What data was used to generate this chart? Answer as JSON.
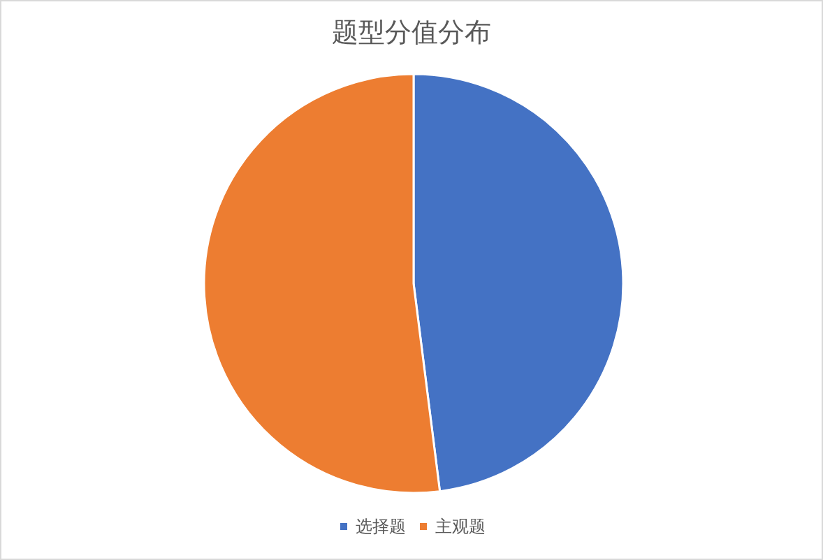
{
  "chart_data": {
    "type": "pie",
    "title": "题型分值分布",
    "categories": [
      "选择题",
      "主观题"
    ],
    "values": [
      48,
      52
    ],
    "colors": [
      "#4472c4",
      "#ed7d31"
    ],
    "legend": "bottom"
  }
}
